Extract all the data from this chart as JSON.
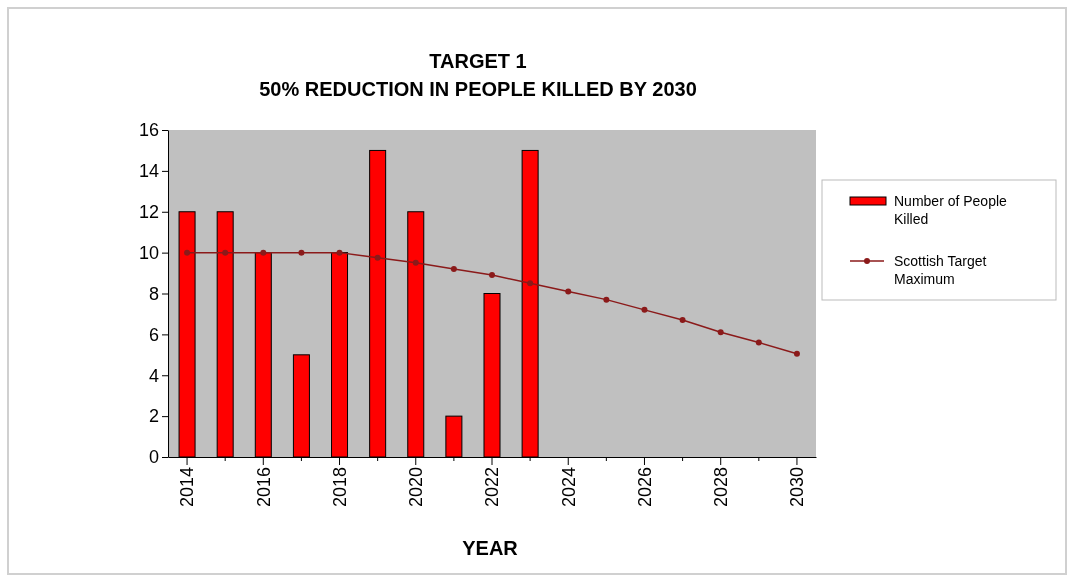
{
  "chart_data": {
    "type": "bar",
    "title": "TARGET 1",
    "subtitle": "50% REDUCTION IN PEOPLE KILLED BY 2030",
    "xlabel": "YEAR",
    "categories": [
      "2014",
      null,
      "2016",
      null,
      "2018",
      null,
      "2020",
      null,
      "2022",
      null,
      "2024",
      null,
      "2026",
      null,
      "2028",
      null,
      "2030"
    ],
    "series": [
      {
        "name": "Number of People Killed",
        "type": "bar",
        "color": "#ff0000",
        "values": [
          12,
          12,
          10,
          5,
          10,
          15,
          12,
          2,
          8,
          15,
          null,
          null,
          null,
          null,
          null,
          null,
          null
        ]
      },
      {
        "name": "Scottish Target Maximum",
        "type": "line",
        "color": "#8b1a1a",
        "marker": "circle",
        "values": [
          10,
          10,
          10,
          10,
          10,
          9.75,
          9.5,
          9.2,
          8.9,
          8.5,
          8.1,
          7.7,
          7.2,
          6.7,
          6.1,
          5.6,
          5.05
        ]
      }
    ],
    "ylim": [
      0,
      16
    ],
    "yticks": [
      0,
      2,
      4,
      6,
      8,
      10,
      12,
      14,
      16
    ],
    "grid": false,
    "legend": "right"
  }
}
